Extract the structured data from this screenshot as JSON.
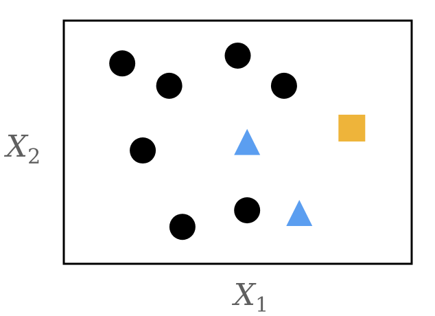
{
  "chart_data": {
    "type": "scatter",
    "title": "",
    "xlabel": {
      "base": "X",
      "sub": "1"
    },
    "ylabel": {
      "base": "X",
      "sub": "2"
    },
    "xlim": [
      0,
      10
    ],
    "ylim": [
      0,
      10
    ],
    "grid": false,
    "ticks": false,
    "colors": {
      "frame": "#000000",
      "circle": "#000000",
      "triangle": "#5b9ef0",
      "square": "#eeb43a",
      "axis_label": "#5f5f5f"
    },
    "series": [
      {
        "marker": "circle",
        "points": [
          {
            "x": 1.68,
            "y": 8.24
          },
          {
            "x": 3.03,
            "y": 7.32
          },
          {
            "x": 5.0,
            "y": 8.56
          },
          {
            "x": 6.33,
            "y": 7.32
          },
          {
            "x": 2.27,
            "y": 4.66
          },
          {
            "x": 5.27,
            "y": 2.2
          },
          {
            "x": 3.41,
            "y": 1.52
          }
        ]
      },
      {
        "marker": "triangle",
        "points": [
          {
            "x": 5.27,
            "y": 5.01
          },
          {
            "x": 6.77,
            "y": 2.09
          }
        ]
      },
      {
        "marker": "square",
        "points": [
          {
            "x": 8.28,
            "y": 5.58
          }
        ]
      }
    ]
  }
}
